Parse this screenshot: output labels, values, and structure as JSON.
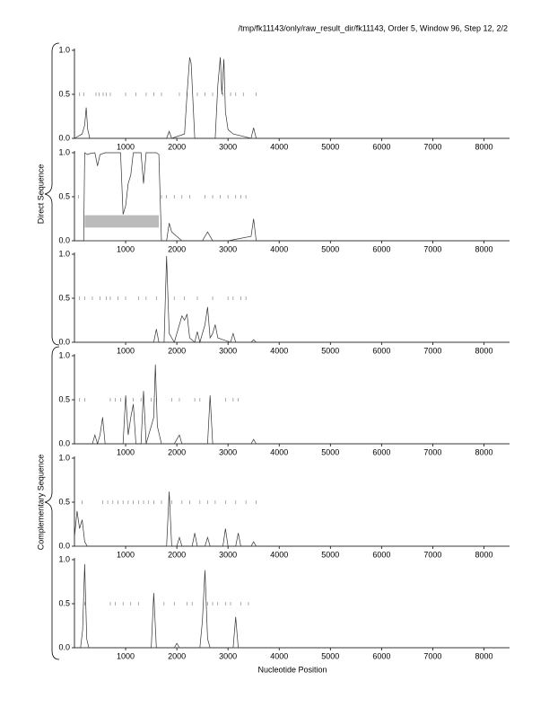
{
  "header": "/tmp/fk11143/only/raw_result_dir/fk11143, Order 5, Window 96, Step 12, 2/2",
  "x_label": "Nucleotide Position",
  "groups": [
    "Direct Sequence",
    "Complementary Sequence"
  ],
  "chart_data": [
    {
      "type": "line",
      "xlim": [
        0,
        8500
      ],
      "ylim": [
        0,
        1
      ],
      "xticks": [
        1000,
        2000,
        3000,
        4000,
        5000,
        6000,
        7000,
        8000
      ],
      "yticks": [
        {
          "value": 0,
          "label": "0.0"
        },
        0.5,
        {
          "value": 1,
          "label": "1.0"
        }
      ],
      "series": [
        {
          "color": "#333333",
          "x": [
            0,
            150,
            200,
            230,
            260,
            300,
            1800,
            1850,
            1900,
            2150,
            2200,
            2250,
            2280,
            2350,
            2750,
            2800,
            2850,
            2880,
            2920,
            2950,
            3000,
            3100,
            3450,
            3500,
            3550,
            8500
          ],
          "values": [
            0,
            0.05,
            0.15,
            0.35,
            0.1,
            0,
            0,
            0.08,
            0,
            0.05,
            0.5,
            0.92,
            0.85,
            0,
            0,
            0.6,
            0.92,
            0.5,
            0.9,
            0.3,
            0.1,
            0.05,
            0,
            0.12,
            0,
            0
          ]
        }
      ],
      "markers": {
        "level": 0.5,
        "x": [
          100,
          180,
          420,
          480,
          560,
          620,
          700,
          1000,
          1200,
          1400,
          1550,
          1700,
          2050,
          2200,
          2400,
          2550,
          2700,
          2900,
          3050,
          3150,
          3300,
          3550
        ]
      }
    },
    {
      "type": "line",
      "xlim": [
        0,
        8500
      ],
      "ylim": [
        0,
        1
      ],
      "xticks": [
        1000,
        2000,
        3000,
        4000,
        5000,
        6000,
        7000,
        8000
      ],
      "yticks": [
        {
          "value": 0,
          "label": "0.0"
        },
        0.5,
        {
          "value": 1,
          "label": "1.0"
        }
      ],
      "series": [
        {
          "color": "#333333",
          "x": [
            0,
            180,
            200,
            250,
            300,
            400,
            450,
            500,
            600,
            700,
            800,
            900,
            950,
            1000,
            1050,
            1100,
            1150,
            1200,
            1300,
            1350,
            1400,
            1500,
            1600,
            1650,
            1700,
            1800,
            1850,
            1900,
            2000,
            2100,
            2500,
            2600,
            2700,
            3000,
            3450,
            3500,
            3550,
            8500
          ],
          "values": [
            0,
            0,
            1,
            0.98,
            0.99,
            1,
            0.85,
            0.98,
            1,
            1,
            1,
            1,
            0.3,
            0.4,
            0.65,
            0.75,
            1,
            1,
            1,
            0.65,
            1,
            1,
            1,
            0.98,
            0,
            0,
            0.2,
            0.1,
            0.05,
            0,
            0,
            0.1,
            0,
            0,
            0.05,
            0.25,
            0,
            0
          ]
        }
      ],
      "highlight": {
        "x": [
          200,
          1650
        ],
        "y": [
          0.15,
          0.29
        ]
      },
      "markers": {
        "level": 0.5,
        "x": [
          80,
          1700,
          1800,
          1950,
          2100,
          2250,
          2550,
          2700,
          2850,
          3000,
          3150,
          3250,
          3350
        ]
      }
    },
    {
      "type": "line",
      "xlim": [
        0,
        8500
      ],
      "ylim": [
        0,
        1
      ],
      "xticks": [
        1000,
        2000,
        3000,
        4000,
        5000,
        6000,
        7000,
        8000
      ],
      "yticks": [
        {
          "value": 0,
          "label": "0.0"
        },
        0.5,
        {
          "value": 1,
          "label": "1.0"
        }
      ],
      "series": [
        {
          "color": "#333333",
          "x": [
            0,
            1550,
            1600,
            1650,
            1750,
            1800,
            1850,
            1950,
            2050,
            2100,
            2150,
            2200,
            2250,
            2350,
            2400,
            2450,
            2550,
            2600,
            2650,
            2700,
            2750,
            2800,
            3050,
            3100,
            3150,
            3450,
            3500,
            3550,
            8500
          ],
          "values": [
            0,
            0,
            0.15,
            0,
            0,
            0.98,
            0.1,
            0,
            0.2,
            0.3,
            0.25,
            0.32,
            0.05,
            0,
            0.12,
            0,
            0.2,
            0.4,
            0.05,
            0.1,
            0.2,
            0.05,
            0,
            0.1,
            0,
            0,
            0.03,
            0,
            0
          ]
        }
      ],
      "markers": {
        "level": 0.5,
        "x": [
          100,
          200,
          350,
          500,
          620,
          700,
          850,
          1000,
          1250,
          1400,
          1600,
          1950,
          2150,
          2400,
          2700,
          3000,
          3100,
          3250,
          3350
        ]
      }
    },
    {
      "type": "line",
      "xlim": [
        0,
        8500
      ],
      "ylim": [
        0,
        1
      ],
      "xticks": [
        1000,
        2000,
        3000,
        4000,
        5000,
        6000,
        7000,
        8000
      ],
      "yticks": [
        {
          "value": 0,
          "label": "0.0"
        },
        0.5,
        {
          "value": 1,
          "label": "1.0"
        }
      ],
      "series": [
        {
          "color": "#333333",
          "x": [
            0,
            350,
            400,
            450,
            500,
            550,
            600,
            950,
            1000,
            1050,
            1100,
            1150,
            1200,
            1300,
            1350,
            1400,
            1550,
            1580,
            1620,
            1700,
            1950,
            2000,
            2050,
            2100,
            2600,
            2650,
            2700,
            3450,
            3500,
            3550,
            8500
          ],
          "values": [
            0,
            0,
            0.1,
            0,
            0.1,
            0.3,
            0,
            0,
            0.55,
            0.1,
            0.3,
            0.45,
            0,
            0,
            0.6,
            0,
            0.3,
            0.9,
            0.2,
            0,
            0,
            0.05,
            0.1,
            0,
            0,
            0.55,
            0,
            0,
            0.05,
            0,
            0
          ]
        }
      ],
      "markers": {
        "level": 0.5,
        "x": [
          100,
          200,
          700,
          800,
          900,
          1000,
          1150,
          1300,
          1500,
          1600,
          1900,
          2050,
          2350,
          2450,
          2650,
          2950,
          3100,
          3200
        ]
      }
    },
    {
      "type": "line",
      "xlim": [
        0,
        8500
      ],
      "ylim": [
        0,
        1
      ],
      "xticks": [
        1000,
        2000,
        3000,
        4000,
        5000,
        6000,
        7000,
        8000
      ],
      "yticks": [
        {
          "value": 0,
          "label": "0.0"
        },
        0.5,
        {
          "value": 1,
          "label": "1.0"
        }
      ],
      "series": [
        {
          "color": "#333333",
          "x": [
            0,
            50,
            100,
            150,
            200,
            250,
            1800,
            1850,
            1900,
            2000,
            2050,
            2100,
            2300,
            2350,
            2400,
            2550,
            2600,
            2650,
            2900,
            2950,
            3000,
            3150,
            3200,
            3250,
            3450,
            3500,
            3550,
            8500
          ],
          "values": [
            0.1,
            0.4,
            0.2,
            0.3,
            0.05,
            0,
            0,
            0.62,
            0,
            0,
            0.1,
            0,
            0,
            0.15,
            0,
            0,
            0.1,
            0,
            0,
            0.2,
            0,
            0,
            0.15,
            0,
            0,
            0.05,
            0,
            0
          ]
        }
      ],
      "markers": {
        "level": 0.5,
        "x": [
          150,
          550,
          650,
          750,
          850,
          950,
          1050,
          1150,
          1250,
          1350,
          1450,
          1550,
          1700,
          1900,
          2100,
          2250,
          2450,
          2600,
          2750,
          2950,
          3150,
          3350,
          3550
        ]
      }
    },
    {
      "type": "line",
      "xlim": [
        0,
        8500
      ],
      "ylim": [
        0,
        1
      ],
      "xticks": [
        1000,
        2000,
        3000,
        4000,
        5000,
        6000,
        7000,
        8000
      ],
      "yticks": [
        {
          "value": 0,
          "label": "0.0"
        },
        0.5,
        {
          "value": 1,
          "label": "1.0"
        }
      ],
      "series": [
        {
          "color": "#333333",
          "x": [
            0,
            120,
            160,
            200,
            240,
            280,
            1500,
            1550,
            1600,
            1950,
            2000,
            2050,
            2450,
            2500,
            2550,
            2600,
            2650,
            3100,
            3150,
            3200,
            8500
          ],
          "values": [
            0,
            0,
            0.2,
            0.95,
            0.1,
            0,
            0,
            0.62,
            0,
            0,
            0.05,
            0,
            0,
            0.3,
            0.88,
            0.1,
            0,
            0,
            0.35,
            0,
            0
          ]
        }
      ],
      "markers": {
        "level": 0.5,
        "x": [
          200,
          700,
          800,
          950,
          1100,
          1250,
          1750,
          1950,
          2200,
          2300,
          2600,
          2700,
          2800,
          2950,
          3050,
          3250,
          3400
        ]
      }
    }
  ]
}
